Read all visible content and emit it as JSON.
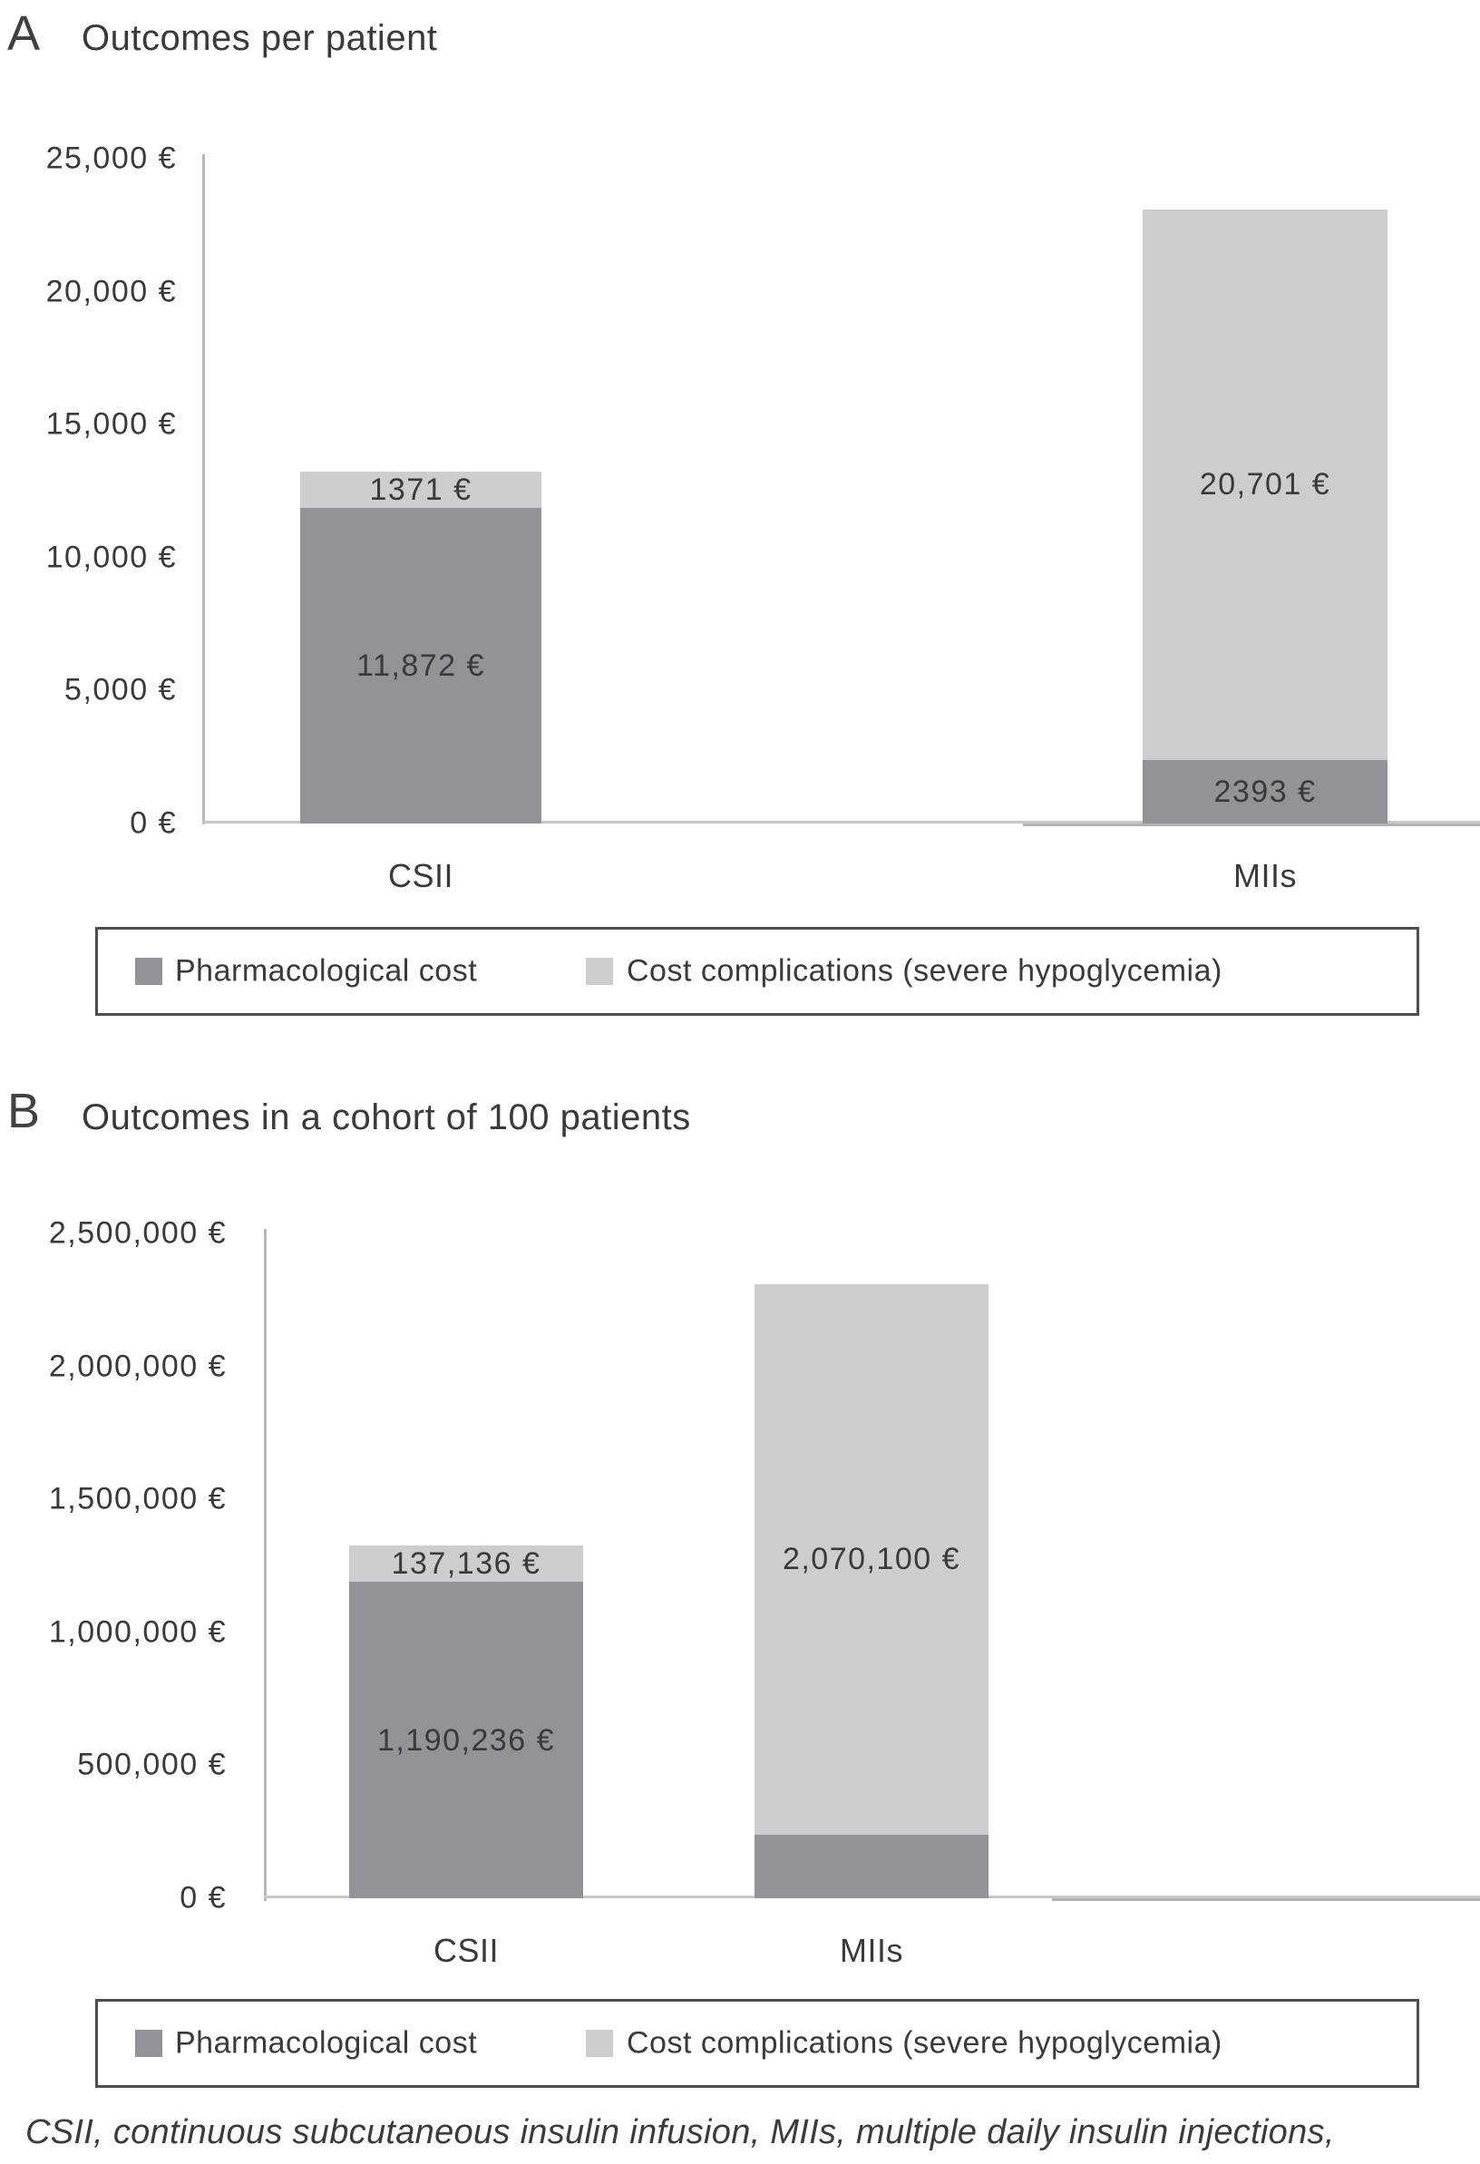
{
  "footnote": "CSII, continuous subcutaneous insulin infusion, MIIs, multiple daily insulin injections,",
  "chart_data": [
    {
      "panel_label": "A",
      "type": "bar",
      "stacked": true,
      "title": "Outcomes per patient",
      "categories": [
        "CSII",
        "MIIs"
      ],
      "series": [
        {
          "name": "Pharmacological cost",
          "color": "#929396",
          "values": [
            11872,
            2393
          ],
          "value_labels": [
            "11,872 €",
            "2393 €"
          ]
        },
        {
          "name": "Cost complications (severe hypoglycemia)",
          "color": "#cccdce",
          "values": [
            1371,
            20701
          ],
          "value_labels": [
            "1371 €",
            "20,701 €"
          ]
        }
      ],
      "ylim": [
        0,
        25000
      ],
      "yticks": [
        "25,000 €",
        "20,000 €",
        "15,000 €",
        "10,000 €",
        "5,000 €",
        "0 €"
      ],
      "xlabel": "",
      "ylabel": "",
      "grid": false,
      "legend_position": "bottom"
    },
    {
      "panel_label": "B",
      "type": "bar",
      "stacked": true,
      "title": "Outcomes in a cohort of 100 patients",
      "categories": [
        "CSII",
        "MIIs"
      ],
      "series": [
        {
          "name": "Pharmacological cost",
          "color": "#929396",
          "values": [
            1190236,
            239300
          ],
          "value_labels": [
            "1,190,236 €",
            ""
          ]
        },
        {
          "name": "Cost complications (severe hypoglycemia)",
          "color": "#cccdce",
          "values": [
            137136,
            2070100
          ],
          "value_labels": [
            "137,136 €",
            "2,070,100 €"
          ]
        }
      ],
      "ylim": [
        0,
        2500000
      ],
      "yticks": [
        "2,500,000 €",
        "2,000,000 €",
        "1,500,000 €",
        "1,000,000 €",
        "500,000 €",
        "0 €"
      ],
      "xlabel": "",
      "ylabel": "",
      "grid": false,
      "legend_position": "bottom"
    }
  ]
}
